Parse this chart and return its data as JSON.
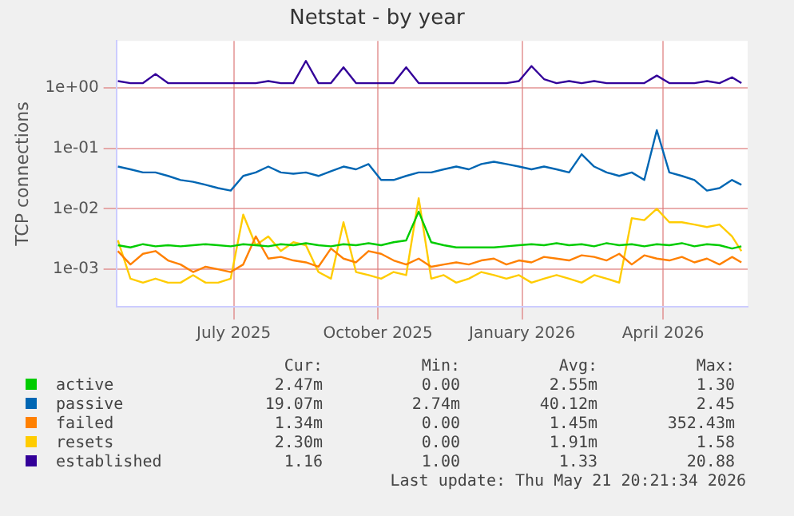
{
  "chart_data": {
    "type": "line",
    "title": "Netstat - by year",
    "ylabel": "TCP connections",
    "log": "y",
    "grid": true,
    "legend": "bottom",
    "marker": "none",
    "line_style": "solid",
    "ylim": [
      0.00024,
      6
    ],
    "yticks": [
      {
        "value": 0.001,
        "label": "1e-03"
      },
      {
        "value": 0.01,
        "label": "1e-02"
      },
      {
        "value": 0.1,
        "label": "1e-01"
      },
      {
        "value": 1,
        "label": "1e+00"
      }
    ],
    "xlim": [
      "2025-04-17",
      "2026-05-25"
    ],
    "xticks": [
      {
        "value": "2025-07-01",
        "label": "July 2025"
      },
      {
        "value": "2025-10-01",
        "label": "October 2025"
      },
      {
        "value": "2026-01-01",
        "label": "January 2026"
      },
      {
        "value": "2026-04-01",
        "label": "April 2026"
      }
    ],
    "x": [
      "2025-04-18",
      "2025-04-26",
      "2025-05-04",
      "2025-05-12",
      "2025-05-20",
      "2025-05-28",
      "2025-06-05",
      "2025-06-13",
      "2025-06-21",
      "2025-06-29",
      "2025-07-07",
      "2025-07-15",
      "2025-07-23",
      "2025-07-31",
      "2025-08-08",
      "2025-08-16",
      "2025-08-24",
      "2025-09-01",
      "2025-09-09",
      "2025-09-17",
      "2025-09-25",
      "2025-10-03",
      "2025-10-11",
      "2025-10-19",
      "2025-10-27",
      "2025-11-04",
      "2025-11-12",
      "2025-11-20",
      "2025-11-28",
      "2025-12-06",
      "2025-12-14",
      "2025-12-22",
      "2025-12-30",
      "2026-01-07",
      "2026-01-15",
      "2026-01-23",
      "2026-01-31",
      "2026-02-08",
      "2026-02-16",
      "2026-02-24",
      "2026-03-04",
      "2026-03-12",
      "2026-03-20",
      "2026-03-28",
      "2026-04-05",
      "2026-04-13",
      "2026-04-21",
      "2026-04-29",
      "2026-05-07",
      "2026-05-15",
      "2026-05-21"
    ],
    "series": [
      {
        "name": "active",
        "color": "#00cc00",
        "values": [
          0.0025,
          0.0023,
          0.0026,
          0.0024,
          0.0025,
          0.0024,
          0.0025,
          0.0026,
          0.0025,
          0.0024,
          0.0026,
          0.0025,
          0.0024,
          0.0026,
          0.0025,
          0.0027,
          0.0025,
          0.0024,
          0.0026,
          0.0025,
          0.0027,
          0.0025,
          0.0028,
          0.003,
          0.009,
          0.0028,
          0.0025,
          0.0023,
          0.0023,
          0.0023,
          0.0023,
          0.0024,
          0.0025,
          0.0026,
          0.0025,
          0.0027,
          0.0025,
          0.0026,
          0.0024,
          0.0027,
          0.0025,
          0.0026,
          0.0024,
          0.0026,
          0.0025,
          0.0027,
          0.0024,
          0.0026,
          0.0025,
          0.0022,
          0.0024
        ]
      },
      {
        "name": "passive",
        "color": "#0066b3",
        "values": [
          0.05,
          0.045,
          0.04,
          0.04,
          0.035,
          0.03,
          0.028,
          0.025,
          0.022,
          0.02,
          0.035,
          0.04,
          0.05,
          0.04,
          0.038,
          0.04,
          0.035,
          0.042,
          0.05,
          0.045,
          0.055,
          0.03,
          0.03,
          0.035,
          0.04,
          0.04,
          0.045,
          0.05,
          0.045,
          0.055,
          0.06,
          0.055,
          0.05,
          0.045,
          0.05,
          0.045,
          0.04,
          0.08,
          0.05,
          0.04,
          0.035,
          0.04,
          0.03,
          0.2,
          0.04,
          0.035,
          0.03,
          0.02,
          0.022,
          0.03,
          0.025
        ]
      },
      {
        "name": "failed",
        "color": "#ff8000",
        "values": [
          0.002,
          0.0012,
          0.0018,
          0.002,
          0.0014,
          0.0012,
          0.0009,
          0.0011,
          0.001,
          0.0009,
          0.0012,
          0.0035,
          0.0015,
          0.0016,
          0.0014,
          0.0013,
          0.0011,
          0.0022,
          0.0015,
          0.0013,
          0.002,
          0.0018,
          0.0014,
          0.0012,
          0.0015,
          0.0011,
          0.0012,
          0.0013,
          0.0012,
          0.0014,
          0.0015,
          0.0012,
          0.0014,
          0.0013,
          0.0016,
          0.0015,
          0.0014,
          0.0017,
          0.0016,
          0.0014,
          0.0018,
          0.0012,
          0.0017,
          0.0015,
          0.0014,
          0.0016,
          0.0013,
          0.0015,
          0.0012,
          0.0016,
          0.0013
        ]
      },
      {
        "name": "resets",
        "color": "#ffcc00",
        "values": [
          0.003,
          0.0007,
          0.0006,
          0.0007,
          0.0006,
          0.0006,
          0.0008,
          0.0006,
          0.0006,
          0.0007,
          0.008,
          0.0025,
          0.0035,
          0.002,
          0.0028,
          0.0025,
          0.0009,
          0.0007,
          0.006,
          0.0009,
          0.0008,
          0.0007,
          0.0009,
          0.0008,
          0.015,
          0.0007,
          0.0008,
          0.0006,
          0.0007,
          0.0009,
          0.0008,
          0.0007,
          0.0008,
          0.0006,
          0.0007,
          0.0008,
          0.0007,
          0.0006,
          0.0008,
          0.0007,
          0.0006,
          0.007,
          0.0065,
          0.01,
          0.006,
          0.006,
          0.0055,
          0.005,
          0.0055,
          0.0035,
          0.002
        ]
      },
      {
        "name": "established",
        "color": "#330099",
        "values": [
          1.3,
          1.2,
          1.2,
          1.7,
          1.2,
          1.2,
          1.2,
          1.2,
          1.2,
          1.2,
          1.2,
          1.2,
          1.3,
          1.2,
          1.2,
          2.8,
          1.2,
          1.2,
          2.2,
          1.2,
          1.2,
          1.2,
          1.2,
          2.2,
          1.2,
          1.2,
          1.2,
          1.2,
          1.2,
          1.2,
          1.2,
          1.2,
          1.3,
          2.3,
          1.4,
          1.2,
          1.3,
          1.2,
          1.3,
          1.2,
          1.2,
          1.2,
          1.2,
          1.6,
          1.2,
          1.2,
          1.2,
          1.3,
          1.2,
          1.5,
          1.2
        ]
      }
    ],
    "annotations": [
      "Cur:",
      "Min:",
      "Avg:",
      "Max:",
      "2.47m",
      "0.00",
      "2.55m",
      "1.30",
      "19.07m",
      "2.74m",
      "40.12m",
      "2.45",
      "1.34m",
      "0.00",
      "1.45m",
      "352.43m",
      "2.30m",
      "0.00",
      "1.91m",
      "1.58",
      "1.16",
      "1.00",
      "1.33",
      "20.88",
      "Last update: Thu May 21 20:21:34 2026"
    ]
  }
}
